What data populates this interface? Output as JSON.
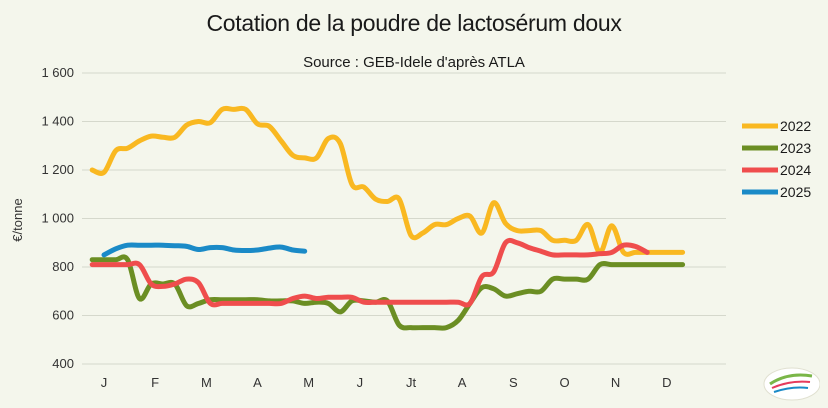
{
  "chart_data": {
    "type": "line",
    "title": "Cotation de la poudre de lactosérum doux",
    "subtitle": "Source : GEB-Idele d'après ATLA",
    "ylabel": "€/tonne",
    "ylim": [
      400,
      1600
    ],
    "yticks": [
      400,
      600,
      800,
      1000,
      1200,
      1400,
      1600
    ],
    "ytick_labels": [
      "400",
      "600",
      "800",
      "1 000",
      "1 200",
      "1 400",
      "1 600"
    ],
    "xlim": [
      0,
      52
    ],
    "month_labels": [
      "J",
      "F",
      "M",
      "A",
      "M",
      "J",
      "Jt",
      "A",
      "S",
      "O",
      "N",
      "D"
    ],
    "month_positions": [
      0,
      4.33,
      8.67,
      13,
      17.33,
      21.67,
      26,
      30.33,
      34.67,
      39,
      43.33,
      47.67
    ],
    "grid": true,
    "legend_position": "right",
    "series": [
      {
        "name": "2022",
        "color": "#f9b821",
        "x": [
          -1,
          0,
          1,
          2,
          3,
          4,
          5,
          6,
          7,
          8,
          9,
          10,
          11,
          12,
          13,
          14,
          15,
          16,
          17,
          18,
          19,
          20,
          21,
          22,
          23,
          24,
          25,
          26,
          27,
          28,
          29,
          30,
          31,
          32,
          33,
          34,
          35,
          36,
          37,
          38,
          39,
          40,
          41,
          42,
          43,
          44,
          45,
          46,
          47,
          48,
          49
        ],
        "values": [
          1200,
          1190,
          1280,
          1290,
          1320,
          1340,
          1335,
          1335,
          1385,
          1400,
          1395,
          1450,
          1450,
          1450,
          1390,
          1380,
          1320,
          1260,
          1250,
          1250,
          1330,
          1310,
          1140,
          1130,
          1080,
          1070,
          1080,
          930,
          940,
          975,
          975,
          1000,
          1010,
          940,
          1065,
          980,
          950,
          950,
          950,
          910,
          910,
          910,
          975,
          860,
          970,
          860,
          860,
          860,
          860,
          860,
          860
        ]
      },
      {
        "name": "2023",
        "color": "#6b8e23",
        "x": [
          -1,
          0,
          1,
          2,
          3,
          4,
          5,
          6,
          7,
          8,
          9,
          10,
          11,
          12,
          13,
          14,
          15,
          16,
          17,
          18,
          19,
          20,
          21,
          22,
          23,
          24,
          25,
          26,
          27,
          28,
          29,
          30,
          31,
          32,
          33,
          34,
          35,
          36,
          37,
          38,
          39,
          40,
          41,
          42,
          43,
          44,
          45,
          46,
          47,
          48,
          49
        ],
        "values": [
          830,
          830,
          830,
          830,
          670,
          730,
          730,
          730,
          640,
          650,
          665,
          665,
          665,
          665,
          665,
          660,
          660,
          660,
          650,
          655,
          650,
          615,
          660,
          660,
          655,
          660,
          560,
          550,
          550,
          550,
          550,
          580,
          650,
          715,
          710,
          680,
          690,
          700,
          700,
          750,
          750,
          750,
          750,
          810,
          810,
          810,
          810,
          810,
          810,
          810,
          810
        ]
      },
      {
        "name": "2024",
        "color": "#ef4d4d",
        "x": [
          -1,
          0,
          1,
          2,
          3,
          4,
          5,
          6,
          7,
          8,
          9,
          10,
          11,
          12,
          13,
          14,
          15,
          16,
          17,
          18,
          19,
          20,
          21,
          22,
          23,
          24,
          25,
          26,
          27,
          28,
          29,
          30,
          31,
          32,
          33,
          34,
          35,
          36,
          37,
          38,
          39,
          40,
          41,
          42,
          43,
          44,
          45,
          46
        ],
        "values": [
          810,
          810,
          810,
          810,
          810,
          730,
          720,
          730,
          750,
          735,
          650,
          650,
          650,
          650,
          650,
          650,
          650,
          670,
          680,
          670,
          675,
          675,
          675,
          655,
          655,
          655,
          655,
          655,
          655,
          655,
          655,
          655,
          650,
          760,
          780,
          900,
          900,
          880,
          865,
          850,
          850,
          850,
          850,
          855,
          860,
          890,
          885,
          860
        ]
      },
      {
        "name": "2025",
        "color": "#1a8ac7",
        "x": [
          0,
          1,
          2,
          3,
          4,
          5,
          6,
          7,
          8,
          9,
          10,
          11,
          12,
          13,
          14,
          15,
          16,
          17
        ],
        "values": [
          850,
          875,
          890,
          890,
          890,
          890,
          888,
          885,
          872,
          880,
          880,
          870,
          868,
          870,
          878,
          882,
          870,
          865
        ]
      }
    ]
  }
}
